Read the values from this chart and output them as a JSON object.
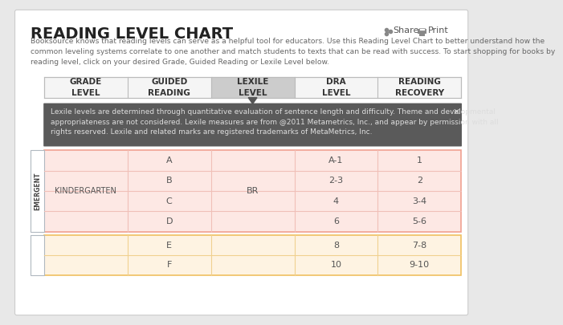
{
  "title": "READING LEVEL CHART",
  "subtitle": "Booksource knows that reading levels can serve as a helpful tool for educators. Use this Reading Level Chart to better understand how the\ncommon leveling systems correlate to one another and match students to texts that can be read with success. To start shopping for books by\nreading level, click on your desired Grade, Guided Reading or Lexile Level below.",
  "share_text": "Share",
  "print_text": "Print",
  "header_cols": [
    "GRADE\nLEVEL",
    "GUIDED\nREADING",
    "LEXILE\nLEVEL",
    "DRA\nLEVEL",
    "READING\nRECOVERY"
  ],
  "lexile_popup": "Lexile levels are determined through quantitative evaluation of sentence length and difficulty. Theme and developmental\nappropriateness are not considered. Lexile measures are from @2011 Metametrics, Inc., and appear by permission with all\nrights reserved. Lexile and related marks are registered trademarks of MetaMetrics, Inc.",
  "emergent_label": "EMERGENT",
  "kindergarten_label": "KINDERGARTEN",
  "guided_reading_rows": [
    "A",
    "B",
    "C",
    "D"
  ],
  "lexile_merged": "BR",
  "dra_rows": [
    "A-1",
    "2-3",
    "4",
    "6"
  ],
  "reading_recovery_rows": [
    "1",
    "2",
    "3-4",
    "5-6"
  ],
  "second_section_guided": [
    "E",
    "F"
  ],
  "second_section_dra": [
    "8",
    "10"
  ],
  "second_section_rr": [
    "7-8",
    "9-10"
  ],
  "bg_color": "#e8e8e8",
  "card_bg": "#ffffff",
  "header_bg": "#f5f5f5",
  "header_active_bg": "#cccccc",
  "popup_bg": "#5a5a5a",
  "popup_text_color": "#dddddd",
  "emergent_section_bg": "#fde8e4",
  "emergent_border_color": "#f0a090",
  "second_section_bg": "#fef3e2",
  "second_section_border_color": "#f0c060",
  "emergent_label_bg": "#ffffff",
  "emergent_label_border": "#b0b8c0",
  "grid_line_color": "#f0c0b8",
  "second_grid_line_color": "#f0d090",
  "header_text_color": "#333333",
  "body_text_color": "#555555",
  "title_color": "#222222",
  "subtitle_color": "#666666"
}
